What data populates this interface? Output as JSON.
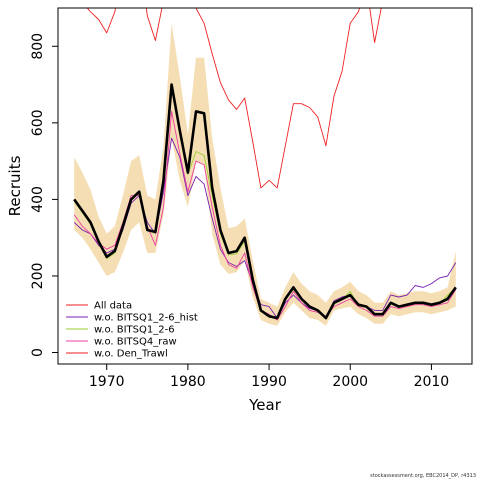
{
  "chart_data": {
    "type": "line",
    "xlabel": "Year",
    "ylabel": "Recruits",
    "xlim": [
      1964,
      2015
    ],
    "ylim": [
      -30,
      900
    ],
    "x_ticks": [
      1970,
      1980,
      1990,
      2000,
      2010
    ],
    "y_ticks": [
      0,
      200,
      400,
      600,
      800
    ],
    "legend_position": "bottom-left",
    "legend": [
      {
        "name": "All data",
        "color": "#ee2222"
      },
      {
        "name": "w.o. BITSQ1_2-6_hist",
        "color": "#7a1fb0"
      },
      {
        "name": "w.o. BITSQ1_2-6",
        "color": "#9acd32"
      },
      {
        "name": "w.o. BITSQ4_raw",
        "color": "#ee3fa0"
      },
      {
        "name": "w.o. Den_Trawl",
        "color": "#ee2222"
      }
    ],
    "x": [
      1966,
      1967,
      1968,
      1969,
      1970,
      1971,
      1972,
      1973,
      1974,
      1975,
      1976,
      1977,
      1978,
      1979,
      1980,
      1981,
      1982,
      1983,
      1984,
      1985,
      1986,
      1987,
      1988,
      1989,
      1990,
      1991,
      1992,
      1993,
      1994,
      1995,
      1996,
      1997,
      1998,
      1999,
      2000,
      2001,
      2002,
      2003,
      2004,
      2005,
      2006,
      2007,
      2008,
      2009,
      2010,
      2011,
      2012,
      2013
    ],
    "series": [
      {
        "name": "All data",
        "color": "#000000",
        "values": [
          400,
          370,
          340,
          290,
          250,
          265,
          330,
          400,
          420,
          320,
          315,
          450,
          700,
          580,
          470,
          630,
          625,
          430,
          320,
          260,
          265,
          300,
          190,
          110,
          95,
          90,
          140,
          170,
          140,
          120,
          110,
          90,
          130,
          140,
          150,
          125,
          120,
          100,
          100,
          130,
          120,
          125,
          130,
          130,
          125,
          130,
          140,
          170
        ]
      },
      {
        "name": "w.o. BITSQ1_2-6_hist",
        "color": "#7a1fb0",
        "values": [
          340,
          320,
          310,
          280,
          260,
          270,
          320,
          390,
          410,
          340,
          310,
          420,
          560,
          510,
          410,
          460,
          440,
          350,
          270,
          235,
          225,
          240,
          180,
          125,
          120,
          90,
          130,
          150,
          130,
          115,
          110,
          90,
          135,
          145,
          150,
          125,
          120,
          110,
          110,
          150,
          145,
          150,
          175,
          170,
          180,
          195,
          200,
          235
        ]
      },
      {
        "name": "w.o. BITSQ1_2-6",
        "color": "#9acd32",
        "values": [
          395,
          365,
          335,
          285,
          245,
          260,
          325,
          398,
          418,
          318,
          312,
          448,
          690,
          575,
          465,
          525,
          515,
          410,
          310,
          255,
          258,
          290,
          185,
          108,
          92,
          88,
          138,
          165,
          138,
          118,
          108,
          88,
          128,
          138,
          160,
          122,
          118,
          98,
          98,
          128,
          118,
          122,
          130,
          128,
          126,
          128,
          150,
          170
        ]
      },
      {
        "name": "w.o. BITSQ4_raw",
        "color": "#ee3fa0",
        "values": [
          360,
          330,
          310,
          285,
          270,
          280,
          340,
          410,
          410,
          330,
          280,
          380,
          630,
          520,
          420,
          500,
          490,
          380,
          280,
          230,
          220,
          260,
          170,
          110,
          100,
          85,
          120,
          160,
          130,
          110,
          105,
          95,
          120,
          130,
          140,
          120,
          110,
          95,
          95,
          120,
          115,
          120,
          125,
          125,
          120,
          125,
          130,
          165
        ]
      },
      {
        "name": "w.o. Den_Trawl",
        "color": "#ee2222",
        "values": [
          920,
          915,
          890,
          870,
          835,
          890,
          1000,
          1150,
          1050,
          880,
          815,
          920,
          960,
          940,
          920,
          900,
          860,
          780,
          705,
          660,
          635,
          665,
          550,
          430,
          450,
          430,
          540,
          650,
          650,
          640,
          615,
          540,
          670,
          735,
          860,
          890,
          960,
          810,
          920,
          960,
          1000,
          1000,
          1000,
          1000,
          1000,
          1000,
          1000,
          1000
        ]
      }
    ],
    "band": {
      "name": "All data confidence interval",
      "color": "#f5deb3",
      "upper": [
        510,
        470,
        425,
        355,
        310,
        330,
        410,
        500,
        515,
        410,
        400,
        540,
        860,
        720,
        570,
        770,
        770,
        560,
        430,
        325,
        330,
        350,
        240,
        140,
        130,
        120,
        170,
        210,
        180,
        160,
        150,
        130,
        160,
        170,
        185,
        160,
        150,
        130,
        130,
        160,
        150,
        155,
        160,
        160,
        155,
        160,
        170,
        265
      ],
      "lower": [
        320,
        300,
        270,
        235,
        200,
        210,
        260,
        320,
        340,
        260,
        260,
        360,
        560,
        450,
        380,
        500,
        490,
        310,
        230,
        205,
        210,
        240,
        145,
        85,
        75,
        70,
        105,
        130,
        110,
        90,
        85,
        70,
        110,
        115,
        120,
        100,
        90,
        75,
        75,
        100,
        95,
        100,
        105,
        105,
        100,
        105,
        110,
        120
      ]
    }
  },
  "footer": "stockassessment.org, EBC2014_DP, r4313"
}
